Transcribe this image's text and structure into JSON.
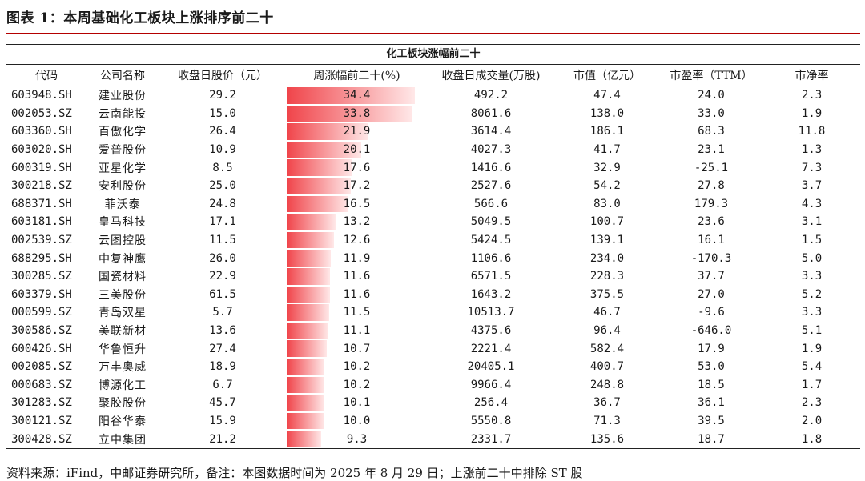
{
  "title": "图表 1：本周基础化工板块上涨排序前二十",
  "table_title": "化工板块涨幅前二十",
  "headers": {
    "code": "代码",
    "name": "公司名称",
    "close": "收盘日股价（元）",
    "weekly": "周涨幅前二十(%)",
    "volume": "收盘日成交量(万股)",
    "mcap": "市值（亿元）",
    "pe": "市盈率（TTM）",
    "pb": "市净率"
  },
  "rows": [
    {
      "code": "603948.SH",
      "name": "建业股份",
      "close": "29.2",
      "weekly": "34.4",
      "volume": "492.2",
      "mcap": "47.4",
      "pe": "24.0",
      "pb": "2.3",
      "pct": 34.4
    },
    {
      "code": "002053.SZ",
      "name": "云南能投",
      "close": "15.0",
      "weekly": "33.8",
      "volume": "8061.6",
      "mcap": "138.0",
      "pe": "33.0",
      "pb": "1.9",
      "pct": 33.8
    },
    {
      "code": "603360.SH",
      "name": "百傲化学",
      "close": "26.4",
      "weekly": "21.9",
      "volume": "3614.4",
      "mcap": "186.1",
      "pe": "68.3",
      "pb": "11.8",
      "pct": 21.9
    },
    {
      "code": "603020.SH",
      "name": "爱普股份",
      "close": "10.9",
      "weekly": "20.1",
      "volume": "4027.3",
      "mcap": "41.7",
      "pe": "23.1",
      "pb": "1.3",
      "pct": 20.1
    },
    {
      "code": "600319.SH",
      "name": "亚星化学",
      "close": "8.5",
      "weekly": "17.6",
      "volume": "1416.6",
      "mcap": "32.9",
      "pe": "-25.1",
      "pb": "7.3",
      "pct": 17.6
    },
    {
      "code": "300218.SZ",
      "name": "安利股份",
      "close": "25.0",
      "weekly": "17.2",
      "volume": "2527.6",
      "mcap": "54.2",
      "pe": "27.8",
      "pb": "3.7",
      "pct": 17.2
    },
    {
      "code": "688371.SH",
      "name": "菲沃泰",
      "close": "24.8",
      "weekly": "16.5",
      "volume": "566.6",
      "mcap": "83.0",
      "pe": "179.3",
      "pb": "4.3",
      "pct": 16.5
    },
    {
      "code": "603181.SH",
      "name": "皇马科技",
      "close": "17.1",
      "weekly": "13.2",
      "volume": "5049.5",
      "mcap": "100.7",
      "pe": "23.6",
      "pb": "3.1",
      "pct": 13.2
    },
    {
      "code": "002539.SZ",
      "name": "云图控股",
      "close": "11.5",
      "weekly": "12.6",
      "volume": "5424.5",
      "mcap": "139.1",
      "pe": "16.1",
      "pb": "1.5",
      "pct": 12.6
    },
    {
      "code": "688295.SH",
      "name": "中复神鹰",
      "close": "26.0",
      "weekly": "11.9",
      "volume": "1106.6",
      "mcap": "234.0",
      "pe": "-170.3",
      "pb": "5.0",
      "pct": 11.9
    },
    {
      "code": "300285.SZ",
      "name": "国瓷材料",
      "close": "22.9",
      "weekly": "11.6",
      "volume": "6571.5",
      "mcap": "228.3",
      "pe": "37.7",
      "pb": "3.3",
      "pct": 11.6
    },
    {
      "code": "603379.SH",
      "name": "三美股份",
      "close": "61.5",
      "weekly": "11.6",
      "volume": "1643.2",
      "mcap": "375.5",
      "pe": "27.0",
      "pb": "5.2",
      "pct": 11.6
    },
    {
      "code": "000599.SZ",
      "name": "青岛双星",
      "close": "5.7",
      "weekly": "11.5",
      "volume": "10513.7",
      "mcap": "46.7",
      "pe": "-9.6",
      "pb": "3.3",
      "pct": 11.5
    },
    {
      "code": "300586.SZ",
      "name": "美联新材",
      "close": "13.6",
      "weekly": "11.1",
      "volume": "4375.6",
      "mcap": "96.4",
      "pe": "-646.0",
      "pb": "5.1",
      "pct": 11.1
    },
    {
      "code": "600426.SH",
      "name": "华鲁恒升",
      "close": "27.4",
      "weekly": "10.7",
      "volume": "2221.4",
      "mcap": "582.4",
      "pe": "17.9",
      "pb": "1.9",
      "pct": 10.7
    },
    {
      "code": "002085.SZ",
      "name": "万丰奥威",
      "close": "18.9",
      "weekly": "10.2",
      "volume": "20405.1",
      "mcap": "400.7",
      "pe": "53.0",
      "pb": "5.4",
      "pct": 10.2
    },
    {
      "code": "000683.SZ",
      "name": "博源化工",
      "close": "6.7",
      "weekly": "10.2",
      "volume": "9966.4",
      "mcap": "248.8",
      "pe": "18.5",
      "pb": "1.7",
      "pct": 10.2
    },
    {
      "code": "301283.SZ",
      "name": "聚胶股份",
      "close": "45.7",
      "weekly": "10.1",
      "volume": "256.4",
      "mcap": "36.7",
      "pe": "36.1",
      "pb": "2.3",
      "pct": 10.1
    },
    {
      "code": "300121.SZ",
      "name": "阳谷华泰",
      "close": "15.9",
      "weekly": "10.0",
      "volume": "5550.8",
      "mcap": "71.3",
      "pe": "39.5",
      "pb": "2.0",
      "pct": 10.0
    },
    {
      "code": "300428.SZ",
      "name": "立中集团",
      "close": "21.2",
      "weekly": "9.3",
      "volume": "2331.7",
      "mcap": "135.6",
      "pe": "18.7",
      "pb": "1.8",
      "pct": 9.3
    }
  ],
  "bar_max": 34.4,
  "source": "资料来源：iFind，中邮证券研究所，备注：本图数据时间为 2025 年 8 月 29 日；上涨前二十中排除 ST 股"
}
